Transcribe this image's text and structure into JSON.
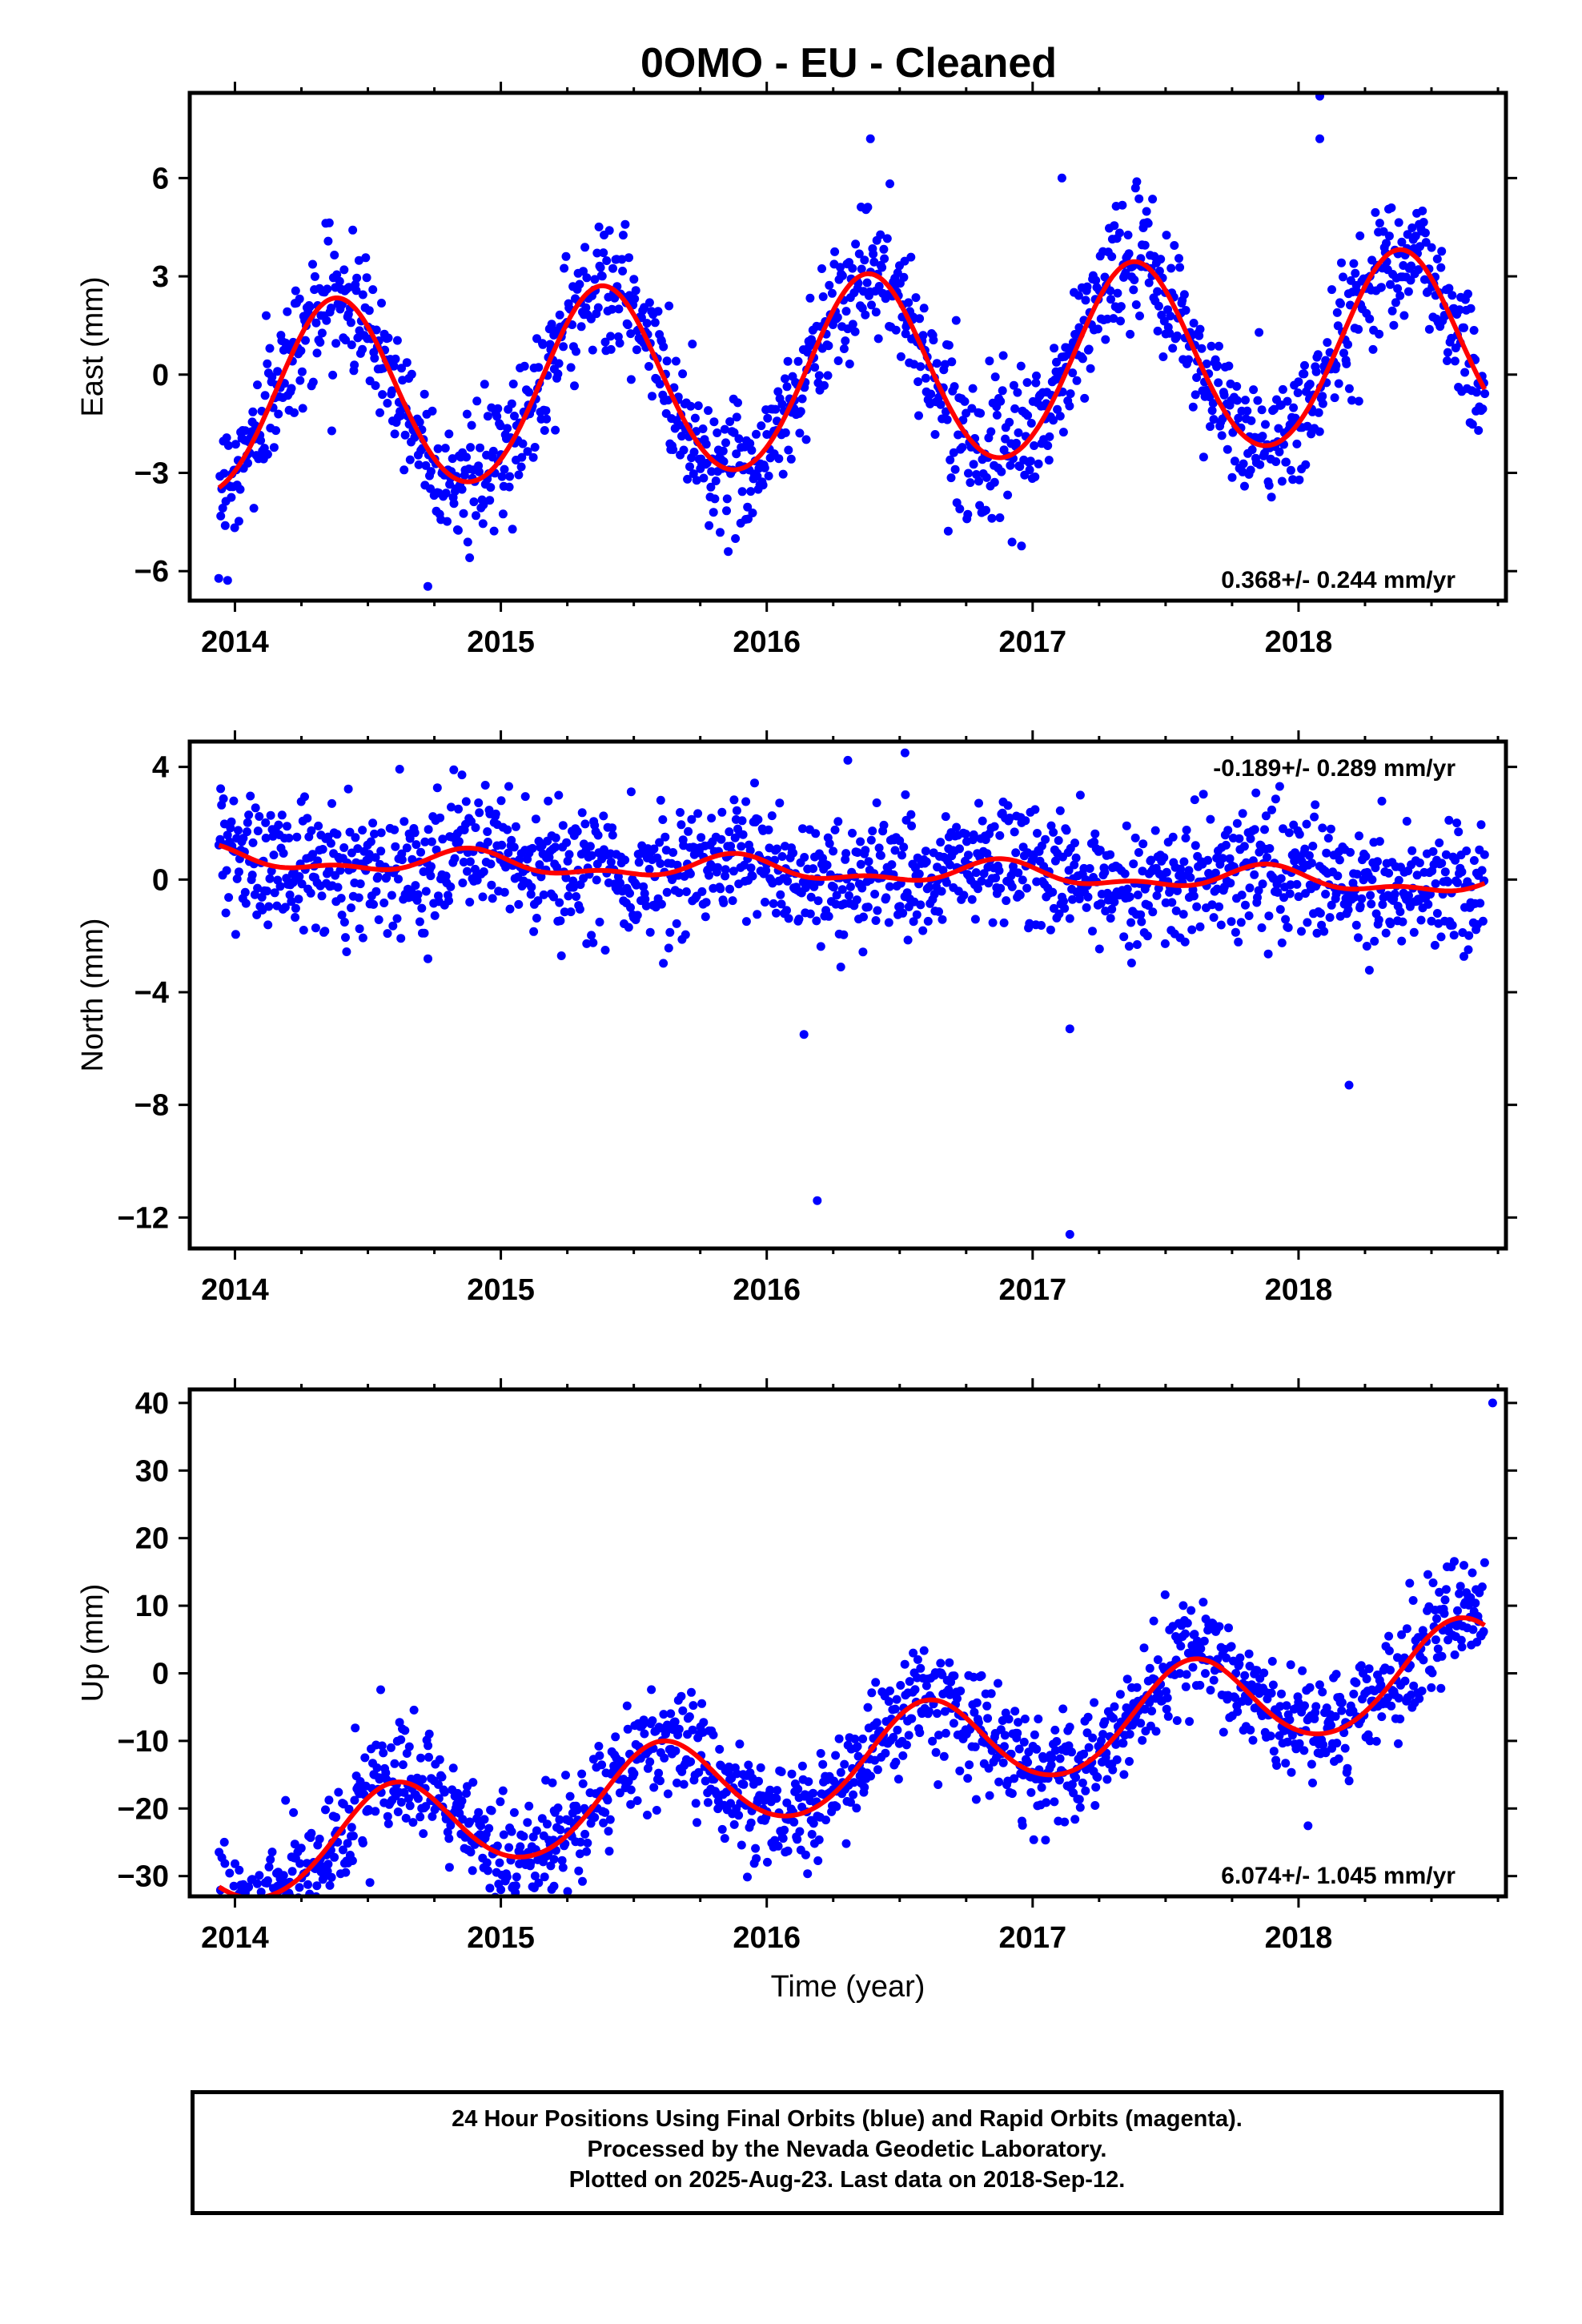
{
  "title": "0OMO  - EU - Cleaned",
  "colors": {
    "points": "#0000ff",
    "fit": "#ff0000",
    "frame": "#000000"
  },
  "chart_data": [
    {
      "type": "scatter",
      "ylabel": "East (mm)",
      "xlabel": "",
      "rate_label": "0.368+/- 0.244 mm/yr",
      "rate_position": "bottom-right",
      "xlim": [
        2013.83,
        2018.78
      ],
      "ylim": [
        -6.9,
        8.6
      ],
      "xticks": [
        "2014",
        "2015",
        "2016",
        "2017",
        "2018"
      ],
      "yticks": [
        "6",
        "3",
        "0",
        "-3",
        "-6"
      ],
      "ytick_values": [
        6,
        3,
        0,
        -3,
        -6
      ],
      "fit": {
        "offset": 0.0,
        "rate": 0.368,
        "amp_annual": 2.9,
        "peak_phase": 0.38,
        "amp_semiannual": 0.15
      },
      "x_range": [
        2013.94,
        2018.7
      ],
      "noise": 1.0,
      "point_count": 1450,
      "outliers": [
        [
          2018.08,
          8.5
        ],
        [
          2018.08,
          7.2
        ],
        [
          2017.11,
          6.0
        ],
        [
          2016.39,
          7.2
        ]
      ]
    },
    {
      "type": "scatter",
      "ylabel": "North (mm)",
      "xlabel": "",
      "rate_label": "-0.189+/- 0.289 mm/yr",
      "rate_position": "top-right",
      "xlim": [
        2013.83,
        2018.78
      ],
      "ylim": [
        -13.1,
        4.9
      ],
      "xticks": [
        "2014",
        "2015",
        "2016",
        "2017",
        "2018"
      ],
      "yticks": [
        "4",
        "0",
        "-4",
        "-8",
        "-12"
      ],
      "ytick_values": [
        4,
        0,
        -4,
        -8,
        -12
      ],
      "fit": {
        "offset": 0.3,
        "rate": -0.189,
        "amp_annual": 0.35,
        "peak_phase": 0.88,
        "amp_semiannual": 0.2
      },
      "x_range": [
        2013.94,
        2018.7
      ],
      "noise": 1.1,
      "point_count": 1450,
      "outliers": [
        [
          2016.14,
          -5.5
        ],
        [
          2016.19,
          -11.4
        ],
        [
          2017.14,
          -12.6
        ],
        [
          2018.19,
          -7.3
        ],
        [
          2017.14,
          -5.3
        ],
        [
          2016.52,
          4.5
        ]
      ]
    },
    {
      "type": "scatter",
      "ylabel": "Up (mm)",
      "xlabel": "Time (year)",
      "rate_label": "6.074+/- 1.045 mm/yr",
      "rate_position": "bottom-right",
      "xlim": [
        2013.83,
        2018.78
      ],
      "ylim": [
        -33,
        42
      ],
      "xticks": [
        "2014",
        "2015",
        "2016",
        "2017",
        "2018"
      ],
      "yticks": [
        "40",
        "30",
        "20",
        "10",
        "0",
        "-10",
        "-20",
        "-30"
      ],
      "ytick_values": [
        40,
        30,
        20,
        10,
        0,
        -10,
        -20,
        -30
      ],
      "fit": {
        "offset": -13.3,
        "rate": 6.074,
        "amp_annual": 7.0,
        "peak_phase": 0.6,
        "amp_semiannual": 0.5
      },
      "x_range": [
        2013.94,
        2018.7
      ],
      "noise": 4.0,
      "point_count": 1450,
      "outliers": [
        [
          2018.73,
          40.0
        ],
        [
          2015.2,
          -31.5
        ],
        [
          2015.2,
          -27.5
        ]
      ]
    }
  ],
  "footer": {
    "line1": "24 Hour Positions Using Final Orbits (blue) and Rapid Orbits (magenta).",
    "line2": "Processed by the Nevada Geodetic Laboratory.",
    "line3": "Plotted on 2025-Aug-23. Last data on 2018-Sep-12."
  }
}
